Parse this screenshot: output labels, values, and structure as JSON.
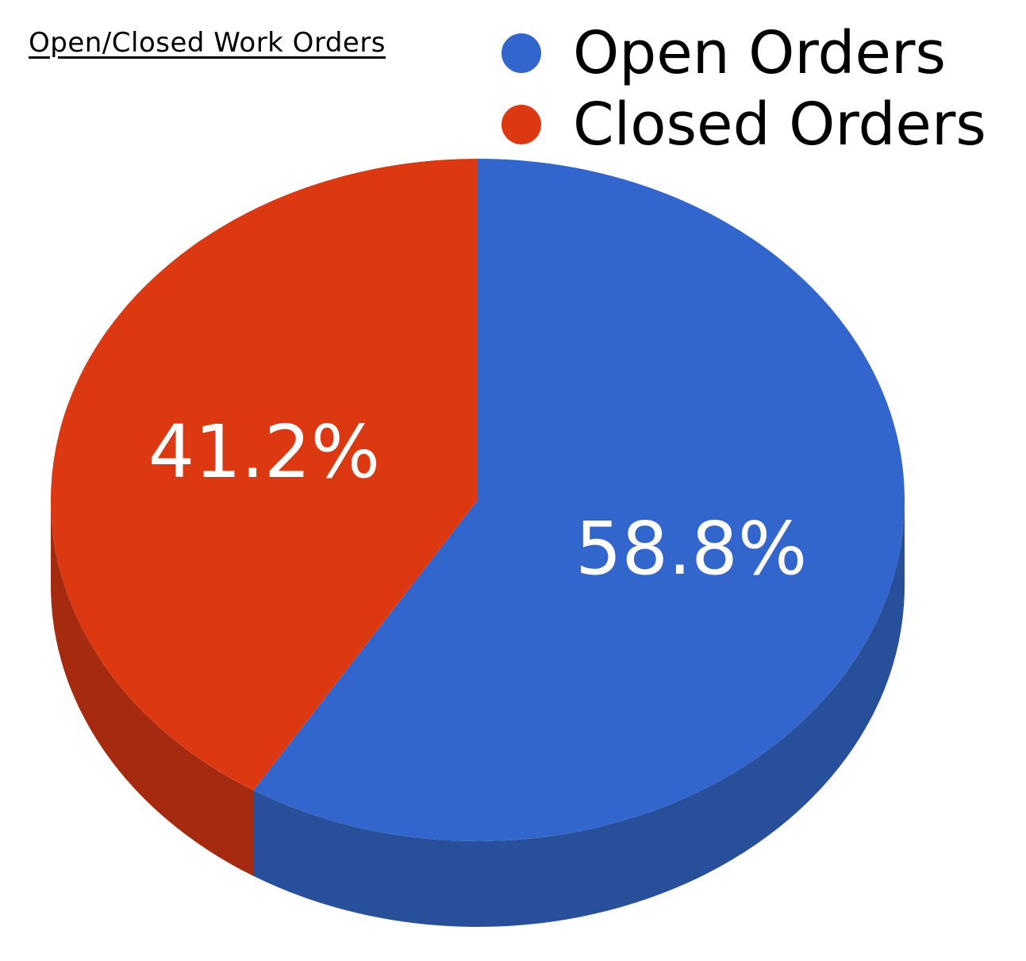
{
  "title": "Open/Closed Work Orders",
  "chart_data": {
    "type": "pie",
    "title": "Open/Closed Work Orders",
    "categories": [
      "Open Orders",
      "Closed Orders"
    ],
    "values": [
      58.8,
      41.2
    ],
    "labels": [
      "58.8%",
      "41.2%"
    ],
    "colors": [
      "#3366cc",
      "#dc3912"
    ],
    "side_colors": [
      "#284f99",
      "#a52a10"
    ],
    "style": "3d",
    "legend_placement": "top-right"
  }
}
